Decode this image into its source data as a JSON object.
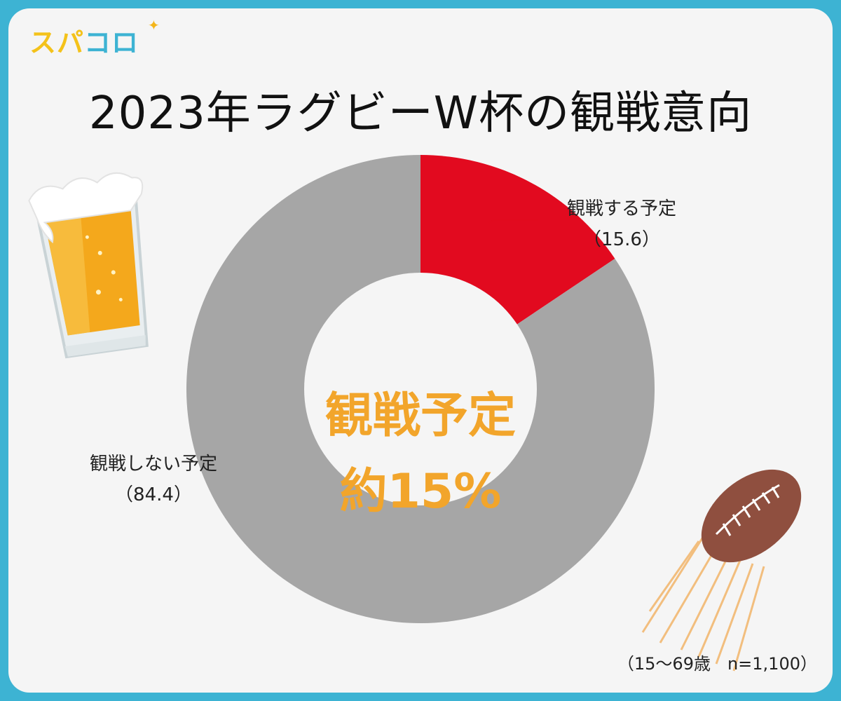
{
  "logo": {
    "part1": "スパ",
    "part2": "コロ"
  },
  "title": "2023年ラグビーW杯の観戦意向",
  "center_label": {
    "line1": "観戦予定",
    "line2": "約15%"
  },
  "footnote": "（15〜69歳　n=1,100）",
  "chart_data": {
    "type": "pie",
    "donut": true,
    "title": "2023年ラグビーW杯の観戦意向",
    "slices": [
      {
        "label": "観戦する予定",
        "value_label": "（15.6）",
        "value": 15.6,
        "color": "#e20a1f"
      },
      {
        "label": "観戦しない予定",
        "value_label": "（84.4）",
        "value": 84.4,
        "color": "#a6a6a6"
      }
    ]
  },
  "icons": [
    "beer-glass-icon",
    "rugby-ball-icon"
  ]
}
